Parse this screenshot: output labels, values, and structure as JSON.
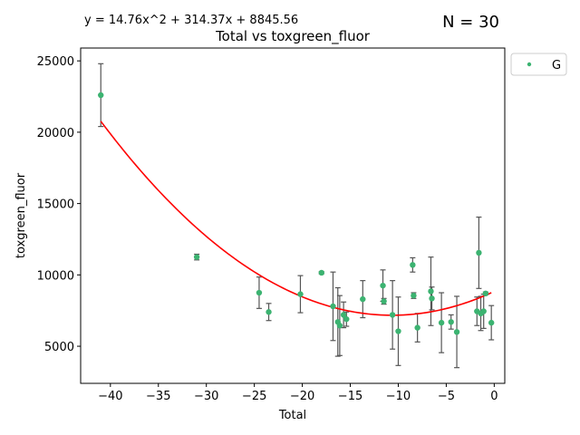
{
  "chart_data": {
    "type": "scatter",
    "title": "Total vs toxgreen_fluor",
    "equation": "y = 14.76x^2 + 314.37x + 8845.56",
    "n_label": "N = 30",
    "xlabel": "Total",
    "ylabel": "toxgreen_fluor",
    "xlim": [
      -43.1,
      1.1
    ],
    "ylim": [
      2400,
      25900
    ],
    "x_ticks": [
      -40,
      -35,
      -30,
      -25,
      -20,
      -15,
      -10,
      -5,
      0
    ],
    "y_ticks": [
      5000,
      10000,
      15000,
      20000,
      25000
    ],
    "legend": {
      "position": "outside-top-right",
      "entries": [
        {
          "label": "G",
          "color": "#3cb371"
        }
      ]
    },
    "grid": false,
    "fit": {
      "type": "quadratic",
      "coefficients": [
        14.76,
        314.37,
        8845.56
      ],
      "x_range": [
        -41.0,
        -0.3
      ],
      "color": "#ff0000"
    },
    "series": [
      {
        "name": "G",
        "color": "#3cb371",
        "points": [
          {
            "x": -41.0,
            "y": 22600,
            "err": 2200
          },
          {
            "x": -31.0,
            "y": 11250,
            "err": 200
          },
          {
            "x": -24.5,
            "y": 8750,
            "err": 1100
          },
          {
            "x": -23.5,
            "y": 7400,
            "err": 600
          },
          {
            "x": -20.2,
            "y": 8650,
            "err": 1300
          },
          {
            "x": -18.0,
            "y": 10150,
            "err": 80
          },
          {
            "x": -16.8,
            "y": 7800,
            "err": 2400
          },
          {
            "x": -16.3,
            "y": 6700,
            "err": 2400
          },
          {
            "x": -16.1,
            "y": 6450,
            "err": 2100
          },
          {
            "x": -15.7,
            "y": 7200,
            "err": 900
          },
          {
            "x": -15.4,
            "y": 6900,
            "err": 500
          },
          {
            "x": -13.7,
            "y": 8300,
            "err": 1300
          },
          {
            "x": -11.6,
            "y": 9250,
            "err": 1100
          },
          {
            "x": -11.5,
            "y": 8150,
            "err": 200
          },
          {
            "x": -10.6,
            "y": 7200,
            "err": 2400
          },
          {
            "x": -10.0,
            "y": 6050,
            "err": 2400
          },
          {
            "x": -8.5,
            "y": 10700,
            "err": 500
          },
          {
            "x": -8.4,
            "y": 8550,
            "err": 200
          },
          {
            "x": -8.0,
            "y": 6300,
            "err": 1000
          },
          {
            "x": -6.6,
            "y": 8850,
            "err": 2400
          },
          {
            "x": -6.5,
            "y": 8350,
            "err": 800
          },
          {
            "x": -5.5,
            "y": 6650,
            "err": 2100
          },
          {
            "x": -4.5,
            "y": 6700,
            "err": 500
          },
          {
            "x": -3.9,
            "y": 6000,
            "err": 2500
          },
          {
            "x": -1.8,
            "y": 7450,
            "err": 1000
          },
          {
            "x": -1.6,
            "y": 11550,
            "err": 2500
          },
          {
            "x": -1.4,
            "y": 7300,
            "err": 1200
          },
          {
            "x": -1.1,
            "y": 7450,
            "err": 1200
          },
          {
            "x": -0.9,
            "y": 8700,
            "err": 100
          },
          {
            "x": -0.3,
            "y": 6650,
            "err": 1200
          }
        ]
      }
    ]
  }
}
